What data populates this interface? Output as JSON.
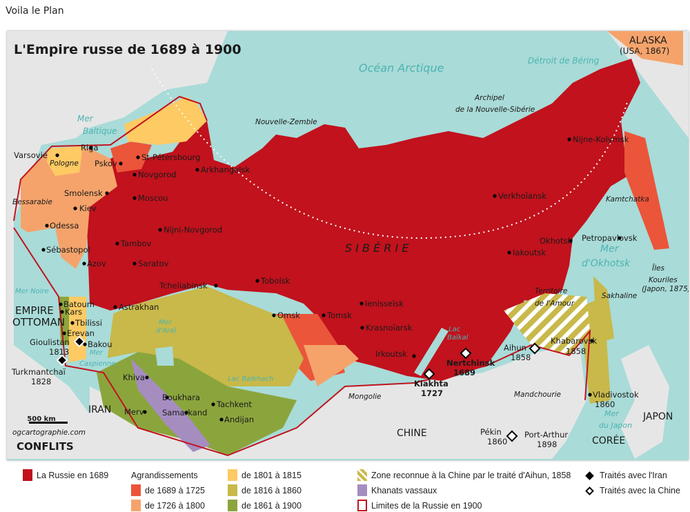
{
  "page": {
    "heading": "Voila le Plan"
  },
  "map": {
    "title": "L'Empire russe de 1689 à 1900",
    "scale_label": "500 km",
    "credit": "ogcartographie.com",
    "logo": "CONFLITS",
    "colors": {
      "sea": "#a9dbd8",
      "land": "#e6e6e6",
      "russia_1689": "#c1121d",
      "c1689_1725": "#eb553a",
      "c1726_1800": "#f5a36b",
      "c1801_1815": "#fdca63",
      "c1816_1860": "#c8b94a",
      "c1861_1900": "#8ba53d",
      "khanats": "#a58dc0",
      "border": "#c1121d"
    },
    "labels": {
      "cities": [
        "Varsovie",
        "Riga",
        "Pskov",
        "St-Pétersbourg",
        "Novgorod",
        "Arkhangelsk",
        "Smolensk",
        "Moscou",
        "Kiev",
        "Odessa",
        "Nijni-Novgorod",
        "Tambov",
        "Sébastopol",
        "Azov",
        "Saratov",
        "Tcheliabinsk",
        "Tobolsk",
        "Astrakhan",
        "Batoum",
        "Kars",
        "Tbilissi",
        "Erevan",
        "Bakou",
        "Omsk",
        "Tomsk",
        "Ienisseïsk",
        "Krasnoïarsk",
        "Irkoutsk",
        "Khiva",
        "Merv",
        "Boukhara",
        "Tachkent",
        "Samarkand",
        "Andijan",
        "Verkhoïansk",
        "Iakoutsk",
        "Okhotsk",
        "Nijne-Kolymsk",
        "Petropavlovsk",
        "Khabarovsk",
        "Vladivostok"
      ],
      "regions": [
        "Pologne",
        "Bessarabie",
        "Nouvelle-Zemble",
        "Archipel",
        "de la Nouvelle-Sibérie",
        "Kamtchatka",
        "Sakhaline",
        "Territoire",
        "de l'Amour",
        "Mongolie",
        "Mandchourie",
        "Îles",
        "Kouriles",
        "(Japon, 1875)"
      ],
      "countries": [
        "Empire",
        "Ottoman",
        "Iran",
        "Chine",
        "Corée",
        "Japon",
        "Alaska",
        "(USA, 1867)"
      ],
      "seas": [
        "Océan Arctique",
        "Détroit de Béring",
        "Mer",
        "Baltique",
        "Mer Noire",
        "Mer",
        "Caspienne",
        "Mer",
        "d'Aral",
        "Lac Balkhach",
        "Lac",
        "Baïkal",
        "Mer",
        "d'Okhotsk",
        "Mer",
        "du Japon"
      ],
      "siberia": "S I B É R I E",
      "treaties": [
        {
          "name": "Gioulistan",
          "year": "1813",
          "with": "iran"
        },
        {
          "name": "Turkmantchaï",
          "year": "1828",
          "with": "iran"
        },
        {
          "name": "Kiakhta",
          "year": "1727",
          "with": "chine"
        },
        {
          "name": "Nertchinsk",
          "year": "1689",
          "with": "chine"
        },
        {
          "name": "Aihun",
          "year": "1858",
          "with": "chine"
        },
        {
          "name": "Pékin",
          "year": "1860",
          "with": "chine"
        }
      ],
      "years": {
        "khabarovsk": "1858",
        "vladivostok": "1860",
        "port_arthur_name": "Port-Arthur",
        "port_arthur_year": "1898"
      }
    }
  },
  "legend": {
    "russia_1689": "La Russie en 1689",
    "agrandissements": "Agrandissements",
    "items": [
      "de 1689 à 1725",
      "de 1726 à 1800",
      "de 1801 à 1815",
      "de 1816 à 1860",
      "de 1861 à 1900"
    ],
    "aihun_zone": "Zone reconnue à la Chine par le traité d'Aihun, 1858",
    "khanats": "Khanats vassaux",
    "limits_1900": "Limites de la Russie en 1900",
    "treaties_iran": "Traités avec l'Iran",
    "treaties_china": "Traités avec la Chine"
  }
}
